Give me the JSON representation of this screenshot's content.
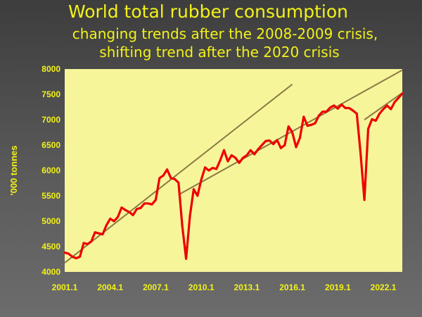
{
  "header": {
    "title": "World total rubber consumption",
    "subtitle1": "changing trends after the 2008-2009 crisis,",
    "subtitle2": "shifting trend after the 2020 crisis"
  },
  "chart_data": {
    "type": "line",
    "title": "World total rubber consumption",
    "ylabel": "'000  tonnes",
    "xlabel": "",
    "ylim": [
      4000,
      8000
    ],
    "yticks": [
      4000,
      4500,
      5000,
      5500,
      6000,
      6500,
      7000,
      7500,
      8000
    ],
    "xticks": [
      "2001.1",
      "2004.1",
      "2007.1",
      "2010.1",
      "2013.1",
      "2016.1",
      "2019.1",
      "2022.1"
    ],
    "x_start": "2001.1",
    "x_end": "2023.2",
    "period": "quarterly",
    "grid": false,
    "colors": {
      "plot_bg": "#f7f59a",
      "series": "#ee0000",
      "trend": "#8a7a45",
      "text": "#f2f21a"
    },
    "series": [
      {
        "values": [
          4380,
          4360,
          4300,
          4270,
          4300,
          4570,
          4550,
          4600,
          4780,
          4760,
          4740,
          4920,
          5050,
          5000,
          5080,
          5270,
          5220,
          5180,
          5120,
          5240,
          5260,
          5350,
          5350,
          5330,
          5420,
          5850,
          5900,
          6020,
          5850,
          5830,
          5760,
          4900,
          4260,
          5100,
          5630,
          5500,
          5820,
          6060,
          6000,
          6050,
          6030,
          6200,
          6400,
          6180,
          6300,
          6250,
          6150,
          6250,
          6300,
          6400,
          6320,
          6420,
          6500,
          6580,
          6590,
          6520,
          6600,
          6440,
          6500,
          6870,
          6750,
          6460,
          6640,
          7060,
          6880,
          6900,
          6930,
          7080,
          7160,
          7160,
          7240,
          7280,
          7220,
          7300,
          7230,
          7230,
          7180,
          7120,
          6330,
          5420,
          6820,
          7010,
          6980,
          7120,
          7210,
          7280,
          7210,
          7350,
          7430,
          7520
        ]
      }
    ],
    "trend_lines": [
      {
        "from": [
          "2001.1",
          4180
        ],
        "to": [
          "2016.1",
          7700
        ]
      },
      {
        "from": [
          "2008.3",
          5520
        ],
        "to": [
          "2023.2",
          7980
        ]
      },
      {
        "from": [
          "2020.4",
          7000
        ],
        "to": [
          "2023.2",
          7530
        ]
      }
    ]
  }
}
